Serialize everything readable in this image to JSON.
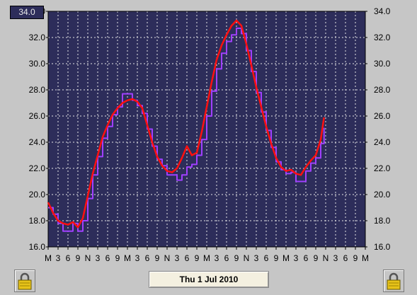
{
  "readout": {
    "value": "34.0"
  },
  "date_button": {
    "label": "Thu 1 Jul 2010"
  },
  "icons": {
    "left_lock": "padlock-icon",
    "right_lock": "padlock-icon"
  },
  "colors": {
    "plot_bg": "#2d2d5a",
    "grid": "#e8e8e8",
    "series_red": "#ff1010",
    "series_purple": "#a040ff",
    "frame": "#c6c6c6"
  },
  "chart_data": {
    "type": "line",
    "title": "",
    "xlabel": "",
    "ylabel": "",
    "ylim": [
      16.0,
      34.0
    ],
    "grid": true,
    "y_ticks": [
      "34.0",
      "32.0",
      "30.0",
      "28.0",
      "26.0",
      "24.0",
      "22.0",
      "20.0",
      "18.0",
      "16.0"
    ],
    "x_ticks": [
      "M",
      "3",
      "6",
      "9",
      "N",
      "3",
      "6",
      "9",
      "M",
      "3",
      "6",
      "9",
      "N",
      "3",
      "6",
      "9",
      "M",
      "3",
      "6",
      "9",
      "N",
      "3",
      "6",
      "9",
      "M",
      "3",
      "6",
      "9",
      "N",
      "3",
      "6",
      "9",
      "M"
    ],
    "x_unit_hours": 3,
    "series": [
      {
        "color": "#ff1010",
        "points": [
          [
            0,
            19.4
          ],
          [
            1.5,
            18.6
          ],
          [
            3,
            18.0
          ],
          [
            4.5,
            17.8
          ],
          [
            6,
            17.7
          ],
          [
            7.5,
            17.9
          ],
          [
            9,
            17.5
          ],
          [
            10.5,
            18.2
          ],
          [
            12,
            19.9
          ],
          [
            13.5,
            21.6
          ],
          [
            15,
            23.0
          ],
          [
            16.5,
            24.4
          ],
          [
            18,
            25.3
          ],
          [
            19.5,
            26.1
          ],
          [
            21,
            26.6
          ],
          [
            22.5,
            27.0
          ],
          [
            24,
            27.2
          ],
          [
            25.5,
            27.3
          ],
          [
            27,
            27.1
          ],
          [
            28.5,
            26.6
          ],
          [
            30,
            25.3
          ],
          [
            31.5,
            24.0
          ],
          [
            33,
            22.9
          ],
          [
            34.5,
            22.2
          ],
          [
            36,
            21.8
          ],
          [
            37.5,
            21.7
          ],
          [
            39,
            22.0
          ],
          [
            40.5,
            22.8
          ],
          [
            42,
            23.7
          ],
          [
            43.5,
            23.0
          ],
          [
            45,
            23.2
          ],
          [
            46.5,
            24.8
          ],
          [
            48,
            26.7
          ],
          [
            49.5,
            28.6
          ],
          [
            51,
            30.3
          ],
          [
            52.5,
            31.4
          ],
          [
            54,
            32.2
          ],
          [
            55.5,
            32.9
          ],
          [
            57,
            33.3
          ],
          [
            58.5,
            32.9
          ],
          [
            60,
            31.5
          ],
          [
            61.5,
            29.9
          ],
          [
            63,
            28.2
          ],
          [
            64.5,
            26.7
          ],
          [
            66,
            25.2
          ],
          [
            67.5,
            23.9
          ],
          [
            69,
            22.8
          ],
          [
            70.5,
            22.1
          ],
          [
            72,
            21.8
          ],
          [
            73.5,
            21.9
          ],
          [
            75,
            21.6
          ],
          [
            76.5,
            21.5
          ],
          [
            78,
            22.1
          ],
          [
            79.5,
            22.6
          ],
          [
            81,
            23.0
          ],
          [
            82.5,
            24.2
          ],
          [
            83.5,
            25.9
          ]
        ]
      },
      {
        "color": "#a040ff",
        "points": [
          [
            0,
            19.0
          ],
          [
            1.5,
            18.5
          ],
          [
            3,
            17.8
          ],
          [
            4.5,
            17.2
          ],
          [
            6,
            17.2
          ],
          [
            7.5,
            17.8
          ],
          [
            9,
            17.2
          ],
          [
            10.5,
            18.0
          ],
          [
            12,
            19.7
          ],
          [
            13.5,
            21.5
          ],
          [
            15,
            22.9
          ],
          [
            16.5,
            24.3
          ],
          [
            18,
            25.2
          ],
          [
            19.5,
            26.1
          ],
          [
            21,
            26.7
          ],
          [
            22.5,
            27.7
          ],
          [
            24,
            27.7
          ],
          [
            25.5,
            27.2
          ],
          [
            27,
            26.8
          ],
          [
            28.5,
            26.2
          ],
          [
            30,
            25.0
          ],
          [
            31.5,
            23.7
          ],
          [
            33,
            22.7
          ],
          [
            34.5,
            22.2
          ],
          [
            36,
            21.5
          ],
          [
            37.5,
            21.5
          ],
          [
            39,
            21.1
          ],
          [
            40.5,
            21.5
          ],
          [
            42,
            22.1
          ],
          [
            43.5,
            22.3
          ],
          [
            45,
            23.0
          ],
          [
            46.5,
            24.2
          ],
          [
            48,
            26.0
          ],
          [
            49.5,
            27.9
          ],
          [
            51,
            29.6
          ],
          [
            52.5,
            30.8
          ],
          [
            54,
            31.7
          ],
          [
            55.5,
            32.2
          ],
          [
            57,
            32.7
          ],
          [
            58.5,
            32.3
          ],
          [
            60,
            31.0
          ],
          [
            61.5,
            29.4
          ],
          [
            63,
            27.8
          ],
          [
            64.5,
            26.3
          ],
          [
            66,
            24.9
          ],
          [
            67.5,
            23.6
          ],
          [
            69,
            22.5
          ],
          [
            70.5,
            21.9
          ],
          [
            72,
            21.6
          ],
          [
            73.5,
            21.7
          ],
          [
            75,
            21.0
          ],
          [
            76.5,
            21.0
          ],
          [
            78,
            21.8
          ],
          [
            79.5,
            22.4
          ],
          [
            81,
            22.8
          ],
          [
            82.5,
            23.9
          ],
          [
            83.5,
            25.1
          ]
        ]
      }
    ]
  }
}
